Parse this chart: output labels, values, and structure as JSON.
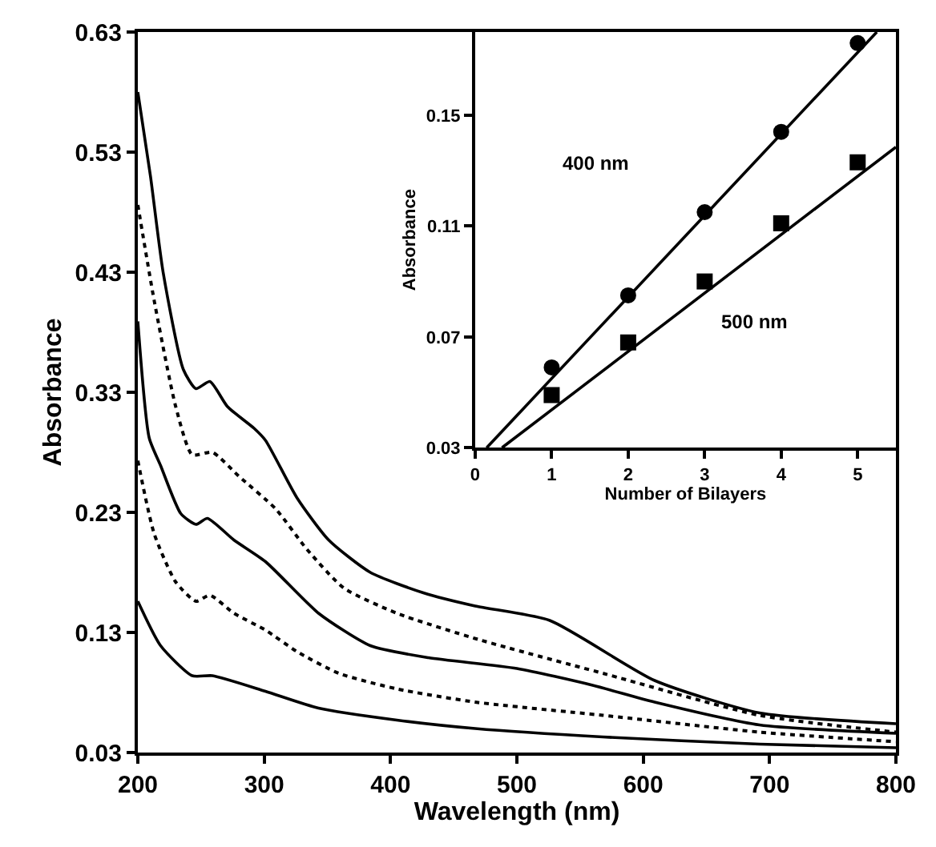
{
  "chart_data": [
    {
      "type": "line",
      "xlabel": "Wavelength (nm)",
      "ylabel": "Absorbance",
      "xlim": [
        200,
        800
      ],
      "xticks": [
        200,
        300,
        400,
        500,
        600,
        700,
        800
      ],
      "ylim": [
        0.03,
        0.63
      ],
      "yticks": [
        0.03,
        0.13,
        0.23,
        0.33,
        0.43,
        0.53,
        0.63
      ],
      "legend": false,
      "marker": "none",
      "series": [
        {
          "color": "#000000",
          "line_style": "solid",
          "x": [
            200,
            210,
            220,
            236,
            246,
            257,
            271,
            292,
            301,
            326,
            351,
            384,
            426,
            467,
            526,
            609,
            692,
            800
          ],
          "values": [
            0.58,
            0.51,
            0.43,
            0.349,
            0.333,
            0.339,
            0.318,
            0.3,
            0.29,
            0.242,
            0.207,
            0.18,
            0.163,
            0.152,
            0.14,
            0.09,
            0.063,
            0.054
          ]
        },
        {
          "color": "#000000",
          "line_style": "dotted",
          "x": [
            200,
            213,
            230,
            243,
            259,
            280,
            309,
            334,
            363,
            405,
            470,
            568,
            692,
            800
          ],
          "values": [
            0.486,
            0.406,
            0.318,
            0.278,
            0.28,
            0.26,
            0.233,
            0.199,
            0.167,
            0.146,
            0.124,
            0.096,
            0.061,
            0.047
          ]
        },
        {
          "color": "#000000",
          "line_style": "solid",
          "x": [
            200,
            209,
            218,
            234,
            246,
            255,
            276,
            301,
            343,
            384,
            430,
            500,
            560,
            609,
            692,
            800
          ],
          "values": [
            0.389,
            0.292,
            0.269,
            0.229,
            0.22,
            0.225,
            0.207,
            0.189,
            0.146,
            0.119,
            0.109,
            0.1,
            0.086,
            0.072,
            0.053,
            0.046
          ]
        },
        {
          "color": "#000000",
          "line_style": "dotted",
          "x": [
            200,
            213,
            230,
            246,
            257,
            276,
            301,
            326,
            359,
            405,
            467,
            568,
            692,
            800
          ],
          "values": [
            0.273,
            0.212,
            0.172,
            0.156,
            0.161,
            0.146,
            0.132,
            0.114,
            0.096,
            0.083,
            0.072,
            0.061,
            0.047,
            0.039
          ]
        },
        {
          "color": "#000000",
          "line_style": "solid",
          "x": [
            200,
            218,
            243,
            259,
            301,
            343,
            405,
            467,
            568,
            692,
            800
          ],
          "values": [
            0.156,
            0.119,
            0.094,
            0.094,
            0.081,
            0.067,
            0.057,
            0.05,
            0.043,
            0.037,
            0.034
          ]
        }
      ]
    },
    {
      "type": "scatter",
      "xlabel": "Number of Bilayers",
      "ylabel": "Absorbance",
      "xlim": [
        0,
        5.5
      ],
      "xticks": [
        0,
        1,
        2,
        3,
        4,
        5
      ],
      "ylim": [
        0.03,
        0.18
      ],
      "yticks": [
        0.03,
        0.07,
        0.11,
        0.15
      ],
      "legend": false,
      "annotations": [
        "400 nm",
        "500 nm"
      ],
      "series": [
        {
          "color": "#000000",
          "marker": "circle",
          "x": [
            1,
            2,
            3,
            4,
            5
          ],
          "values": [
            0.059,
            0.085,
            0.115,
            0.144,
            0.176
          ]
        },
        {
          "color": "#000000",
          "marker": "square",
          "x": [
            1,
            2,
            3,
            4,
            5
          ],
          "values": [
            0.049,
            0.068,
            0.09,
            0.111,
            0.133
          ]
        },
        {
          "type": "line",
          "color": "#000000",
          "marker": "none",
          "line_style": "solid",
          "x": [
            0.15,
            5.25
          ],
          "values": [
            0.03,
            0.18
          ]
        },
        {
          "type": "line",
          "color": "#000000",
          "marker": "none",
          "line_style": "solid",
          "x": [
            0.35,
            5.5
          ],
          "values": [
            0.03,
            0.1385
          ]
        }
      ]
    }
  ]
}
